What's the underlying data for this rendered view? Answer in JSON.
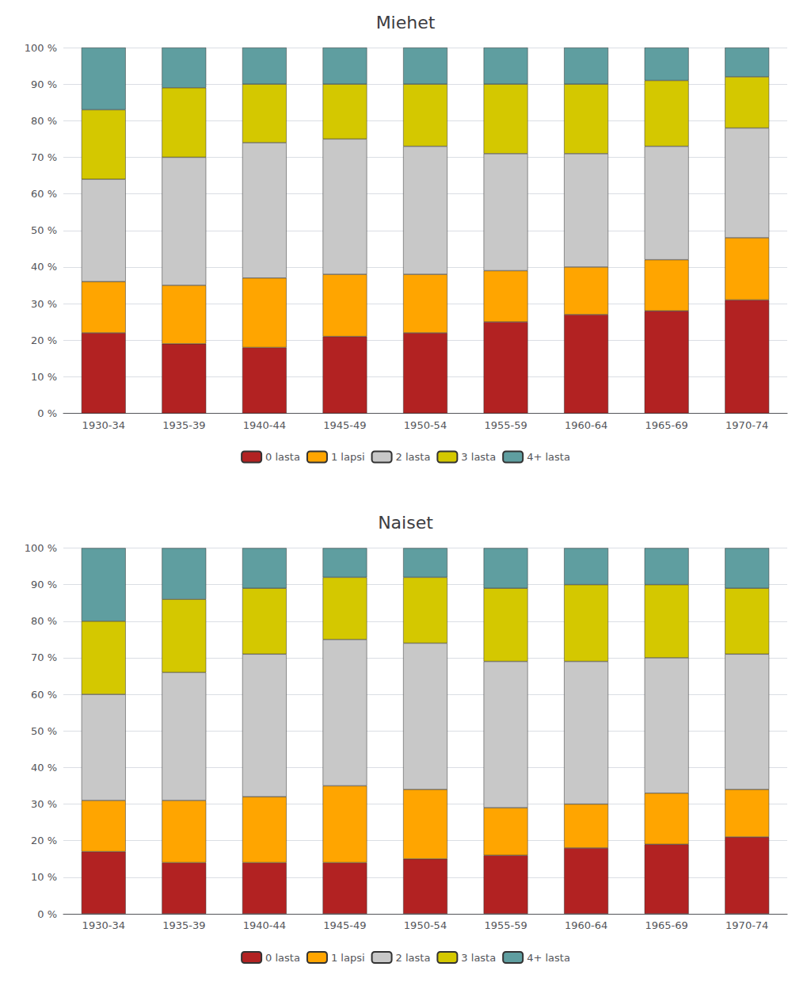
{
  "chart_data": [
    {
      "type": "bar",
      "title": "Miehet",
      "categories": [
        "1930-34",
        "1935-39",
        "1940-44",
        "1945-49",
        "1950-54",
        "1955-59",
        "1960-64",
        "1965-69",
        "1970-74"
      ],
      "series": [
        {
          "name": "0 lasta",
          "color": "#B22222",
          "values": [
            22,
            19,
            18,
            21,
            22,
            25,
            27,
            28,
            31
          ]
        },
        {
          "name": "1 lapsi",
          "color": "#FFA500",
          "values": [
            14,
            16,
            19,
            17,
            16,
            14,
            13,
            14,
            17
          ]
        },
        {
          "name": "2 lasta",
          "color": "#C8C8C8",
          "values": [
            28,
            35,
            37,
            37,
            35,
            32,
            31,
            31,
            30
          ]
        },
        {
          "name": "3 lasta",
          "color": "#D4C800",
          "values": [
            19,
            19,
            16,
            15,
            17,
            19,
            19,
            18,
            14
          ]
        },
        {
          "name": "4+ lasta",
          "color": "#5F9EA0",
          "values": [
            17,
            11,
            10,
            10,
            10,
            10,
            10,
            9,
            8
          ]
        }
      ],
      "ylim": [
        0,
        100
      ],
      "yticks": [
        {
          "value": 0,
          "label": "0 %"
        },
        {
          "value": 10,
          "label": "10 %"
        },
        {
          "value": 20,
          "label": "20 %"
        },
        {
          "value": 30,
          "label": "30 %"
        },
        {
          "value": 40,
          "label": "40 %"
        },
        {
          "value": 50,
          "label": "50 %"
        },
        {
          "value": 60,
          "label": "60 %"
        },
        {
          "value": 70,
          "label": "70 %"
        },
        {
          "value": 80,
          "label": "80 %"
        },
        {
          "value": 90,
          "label": "90 %"
        },
        {
          "value": 100,
          "label": "100 %"
        }
      ],
      "grid": true,
      "stacked": true,
      "legend": "bottom"
    },
    {
      "type": "bar",
      "title": "Naiset",
      "categories": [
        "1930-34",
        "1935-39",
        "1940-44",
        "1945-49",
        "1950-54",
        "1955-59",
        "1960-64",
        "1965-69",
        "1970-74"
      ],
      "series": [
        {
          "name": "0 lasta",
          "color": "#B22222",
          "values": [
            17,
            14,
            14,
            14,
            15,
            16,
            18,
            19,
            21
          ]
        },
        {
          "name": "1 lapsi",
          "color": "#FFA500",
          "values": [
            14,
            17,
            18,
            21,
            19,
            13,
            12,
            14,
            13
          ]
        },
        {
          "name": "2 lasta",
          "color": "#C8C8C8",
          "values": [
            29,
            35,
            39,
            40,
            40,
            40,
            39,
            37,
            37
          ]
        },
        {
          "name": "3 lasta",
          "color": "#D4C800",
          "values": [
            20,
            20,
            18,
            17,
            18,
            20,
            21,
            20,
            18
          ]
        },
        {
          "name": "4+ lasta",
          "color": "#5F9EA0",
          "values": [
            20,
            14,
            11,
            8,
            8,
            11,
            10,
            10,
            11
          ]
        }
      ],
      "ylim": [
        0,
        100
      ],
      "yticks": [
        {
          "value": 0,
          "label": "0 %"
        },
        {
          "value": 10,
          "label": "10 %"
        },
        {
          "value": 20,
          "label": "20 %"
        },
        {
          "value": 30,
          "label": "30 %"
        },
        {
          "value": 40,
          "label": "40 %"
        },
        {
          "value": 50,
          "label": "50 %"
        },
        {
          "value": 60,
          "label": "60 %"
        },
        {
          "value": 70,
          "label": "70 %"
        },
        {
          "value": 80,
          "label": "80 %"
        },
        {
          "value": 90,
          "label": "90 %"
        },
        {
          "value": 100,
          "label": "100 %"
        }
      ],
      "grid": true,
      "stacked": true,
      "legend": "bottom"
    }
  ]
}
